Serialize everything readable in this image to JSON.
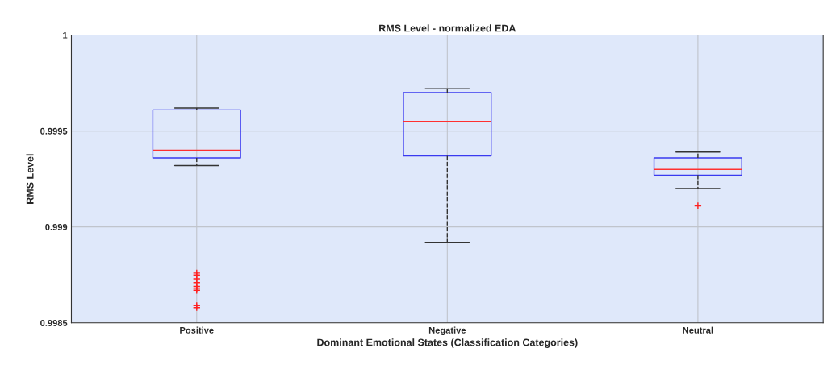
{
  "chart_data": {
    "type": "box",
    "title": "RMS Level - normalized EDA",
    "xlabel": "Dominant Emotional States (Classification Categories)",
    "ylabel": "RMS Level",
    "categories": [
      "Positive",
      "Negative",
      "Neutral"
    ],
    "boxes": [
      {
        "low": 0.99932,
        "q1": 0.99936,
        "median": 0.9994,
        "q3": 0.99961,
        "high": 0.99962,
        "outliers": [
          0.99876,
          0.99875,
          0.99873,
          0.99871,
          0.99869,
          0.99868,
          0.99867,
          0.99859,
          0.99858
        ]
      },
      {
        "low": 0.99892,
        "q1": 0.99937,
        "median": 0.99955,
        "q3": 0.9997,
        "high": 0.99972
      },
      {
        "low": 0.9992,
        "q1": 0.99927,
        "median": 0.9993,
        "q3": 0.99936,
        "high": 0.99939,
        "outliers": [
          0.99911
        ]
      }
    ],
    "color": "#3a3af0",
    "line_style": "dashed",
    "marker": "cross",
    "ylim": [
      0.9985,
      1
    ],
    "yticks": [
      0.9985,
      0.999,
      0.9995,
      1
    ],
    "grid": true
  }
}
